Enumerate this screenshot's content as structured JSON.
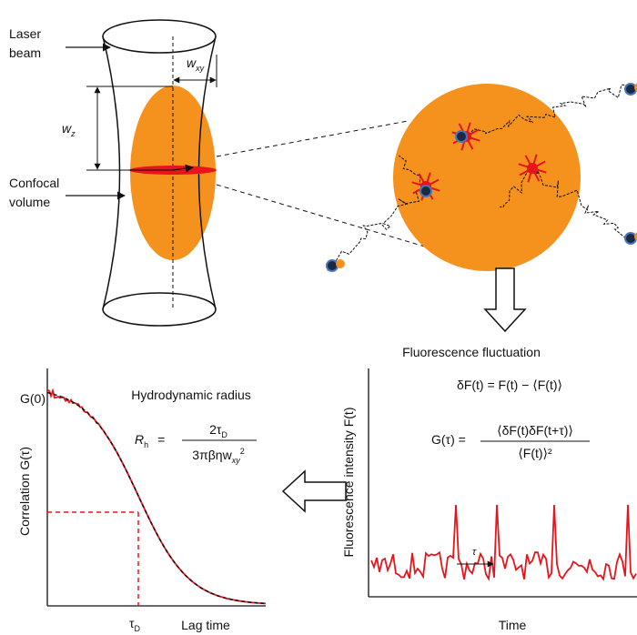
{
  "confocal": {
    "laser_label": [
      "Laser",
      "beam"
    ],
    "volume_label": [
      "Confocal",
      "volume"
    ],
    "wxy": {
      "base": "w",
      "sub": "xy"
    },
    "wz": {
      "base": "w",
      "sub": "z"
    }
  },
  "fluctuation": {
    "title": "Fluorescence fluctuation",
    "eq1": "δF(t) = F(t) − ⟨F(t)⟩",
    "eq2": {
      "left": "G(τ) =",
      "numerator": "⟨δF(t)δF(t+τ)⟩",
      "denominator": "⟨F(t)⟩²"
    },
    "y_label": "Fluorescence intensity F(t)",
    "x_label": "Time",
    "tau": "τ"
  },
  "correlation": {
    "title": "Hydrodynamic radius",
    "formula": {
      "left": "R",
      "left_sub": "h",
      "equals": "=",
      "numerator": "2τ",
      "numerator_sub": "D",
      "denominator": "3πβηw",
      "denominator_sub": "xy",
      "denominator_sup": "2"
    },
    "g0": "G(0)",
    "y_label": "Correlation G(τ)",
    "tau_d": {
      "base": "τ",
      "sub": "D"
    },
    "x_label": "Lag time"
  }
}
